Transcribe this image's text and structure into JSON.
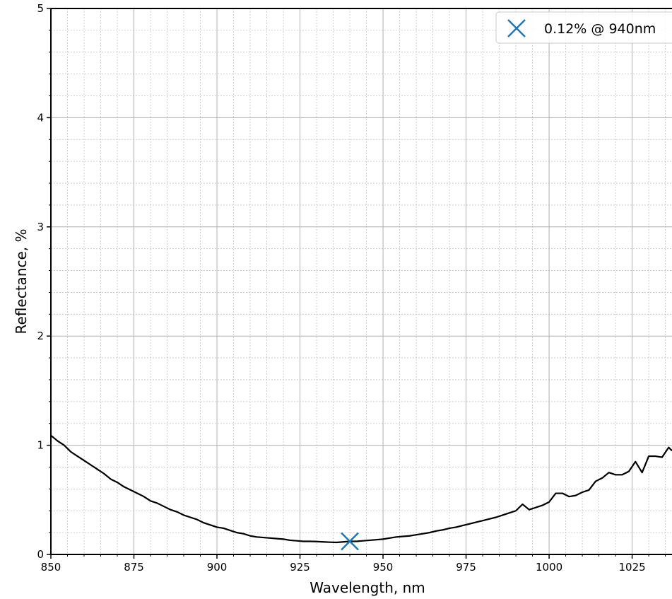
{
  "chart_data": {
    "type": "line",
    "xlabel": "Wavelength, nm",
    "ylabel": "Reflectance, %",
    "xlim": [
      850,
      1037
    ],
    "ylim": [
      0,
      5
    ],
    "x_ticks": [
      850,
      875,
      900,
      925,
      950,
      975,
      1000,
      1025
    ],
    "y_ticks": [
      0,
      1,
      2,
      3,
      4,
      5
    ],
    "grid": {
      "major": true,
      "minor": true
    },
    "legend_position": "top-right",
    "series": [
      {
        "color": "#000000",
        "points": [
          [
            850,
            1.09
          ],
          [
            852,
            1.04
          ],
          [
            854,
            1.0
          ],
          [
            856,
            0.94
          ],
          [
            858,
            0.9
          ],
          [
            860,
            0.86
          ],
          [
            862,
            0.82
          ],
          [
            864,
            0.78
          ],
          [
            866,
            0.74
          ],
          [
            868,
            0.69
          ],
          [
            870,
            0.66
          ],
          [
            872,
            0.62
          ],
          [
            874,
            0.59
          ],
          [
            876,
            0.56
          ],
          [
            878,
            0.53
          ],
          [
            880,
            0.49
          ],
          [
            882,
            0.47
          ],
          [
            884,
            0.44
          ],
          [
            886,
            0.41
          ],
          [
            888,
            0.39
          ],
          [
            890,
            0.36
          ],
          [
            892,
            0.34
          ],
          [
            894,
            0.32
          ],
          [
            896,
            0.29
          ],
          [
            898,
            0.27
          ],
          [
            900,
            0.25
          ],
          [
            902,
            0.24
          ],
          [
            904,
            0.22
          ],
          [
            906,
            0.2
          ],
          [
            908,
            0.19
          ],
          [
            910,
            0.17
          ],
          [
            912,
            0.16
          ],
          [
            914,
            0.155
          ],
          [
            916,
            0.15
          ],
          [
            918,
            0.145
          ],
          [
            920,
            0.14
          ],
          [
            922,
            0.13
          ],
          [
            924,
            0.125
          ],
          [
            926,
            0.12
          ],
          [
            928,
            0.12
          ],
          [
            930,
            0.118
          ],
          [
            932,
            0.115
          ],
          [
            934,
            0.112
          ],
          [
            936,
            0.11
          ],
          [
            938,
            0.115
          ],
          [
            940,
            0.12
          ],
          [
            942,
            0.12
          ],
          [
            944,
            0.125
          ],
          [
            946,
            0.13
          ],
          [
            948,
            0.135
          ],
          [
            950,
            0.14
          ],
          [
            952,
            0.15
          ],
          [
            954,
            0.16
          ],
          [
            956,
            0.165
          ],
          [
            958,
            0.17
          ],
          [
            960,
            0.18
          ],
          [
            962,
            0.19
          ],
          [
            964,
            0.2
          ],
          [
            966,
            0.215
          ],
          [
            968,
            0.225
          ],
          [
            970,
            0.24
          ],
          [
            972,
            0.25
          ],
          [
            974,
            0.265
          ],
          [
            976,
            0.28
          ],
          [
            978,
            0.295
          ],
          [
            980,
            0.31
          ],
          [
            982,
            0.325
          ],
          [
            984,
            0.34
          ],
          [
            986,
            0.36
          ],
          [
            988,
            0.38
          ],
          [
            990,
            0.4
          ],
          [
            992,
            0.46
          ],
          [
            994,
            0.41
          ],
          [
            996,
            0.43
          ],
          [
            998,
            0.45
          ],
          [
            1000,
            0.48
          ],
          [
            1002,
            0.56
          ],
          [
            1004,
            0.56
          ],
          [
            1006,
            0.53
          ],
          [
            1008,
            0.54
          ],
          [
            1010,
            0.57
          ],
          [
            1012,
            0.59
          ],
          [
            1014,
            0.67
          ],
          [
            1016,
            0.7
          ],
          [
            1018,
            0.75
          ],
          [
            1020,
            0.73
          ],
          [
            1022,
            0.73
          ],
          [
            1024,
            0.76
          ],
          [
            1026,
            0.85
          ],
          [
            1028,
            0.75
          ],
          [
            1030,
            0.9
          ],
          [
            1032,
            0.9
          ],
          [
            1034,
            0.89
          ],
          [
            1036,
            0.98
          ],
          [
            1037,
            0.95
          ]
        ]
      }
    ],
    "marker": {
      "x": 940,
      "y": 0.12,
      "symbol": "x",
      "color": "#1f77b4",
      "label": "0.12% @ 940nm"
    }
  }
}
